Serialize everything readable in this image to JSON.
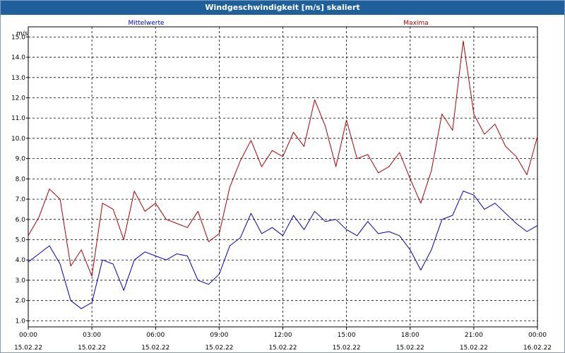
{
  "window_title": "Windgeschwindigkeit [m/s] skaliert",
  "colors": {
    "titlebar": "#1f5f9c",
    "mean": "#0000c0",
    "max": "#b00000",
    "grid": "#000000"
  },
  "chart_data": {
    "type": "line",
    "title": "Windgeschwindigkeit [m/s] skaliert",
    "ylabel": "m/s",
    "xlabel": "",
    "ylim": [
      0.7,
      15.5
    ],
    "yticks": [
      1.0,
      2.0,
      3.0,
      4.0,
      5.0,
      6.0,
      7.0,
      8.0,
      9.0,
      10.0,
      11.0,
      12.0,
      13.0,
      14.0,
      15.0
    ],
    "ytick_labels": [
      "1.0",
      "2.0",
      "3.0",
      "4.0",
      "5.0",
      "6.0",
      "7.0",
      "8.0",
      "9.0",
      "10.0",
      "11.0",
      "12.0",
      "13.0",
      "14.0",
      "15.0"
    ],
    "xlim_hours": [
      0,
      24
    ],
    "xticks_hours": [
      0,
      3,
      6,
      9,
      12,
      15,
      18,
      21,
      24
    ],
    "xtick_time_labels": [
      "00:00",
      "03:00",
      "06:00",
      "09:00",
      "12:00",
      "15:00",
      "18:00",
      "21:00",
      "00:00"
    ],
    "xtick_date_labels": [
      "15.02.22",
      "15.02.22",
      "15.02.22",
      "15.02.22",
      "15.02.22",
      "15.02.22",
      "15.02.22",
      "15.02.22",
      "16.02.22"
    ],
    "grid": true,
    "legend_placement": "top",
    "x_hours": [
      0,
      0.5,
      1,
      1.5,
      2,
      2.5,
      3,
      3.5,
      4,
      4.5,
      5,
      5.5,
      6,
      6.5,
      7,
      7.5,
      8,
      8.5,
      9,
      9.5,
      10,
      10.5,
      11,
      11.5,
      12,
      12.5,
      13,
      13.5,
      14,
      14.5,
      15,
      15.5,
      16,
      16.5,
      17,
      17.5,
      18,
      18.5,
      19,
      19.5,
      20,
      20.5,
      21,
      21.5,
      22,
      22.5,
      23,
      23.5,
      24
    ],
    "series": [
      {
        "name": "Mittelwerte",
        "color": "#0000c0",
        "values": [
          3.9,
          4.3,
          4.7,
          3.8,
          2.0,
          1.6,
          1.9,
          4.0,
          3.8,
          2.5,
          4.0,
          4.4,
          4.2,
          4.0,
          4.3,
          4.2,
          3.0,
          2.8,
          3.3,
          4.7,
          5.1,
          6.3,
          5.3,
          5.6,
          5.2,
          6.2,
          5.5,
          6.4,
          5.9,
          6.0,
          5.5,
          5.2,
          5.9,
          5.3,
          5.4,
          5.2,
          4.5,
          3.5,
          4.5,
          6.0,
          6.2,
          7.4,
          7.2,
          6.5,
          6.8,
          6.3,
          5.8,
          5.4,
          5.7
        ]
      },
      {
        "name": "Maxima",
        "color": "#b00000",
        "values": [
          5.2,
          6.1,
          7.5,
          7.0,
          3.7,
          4.5,
          3.2,
          6.8,
          6.5,
          5.0,
          7.4,
          6.4,
          6.8,
          6.0,
          5.8,
          5.6,
          6.4,
          4.9,
          5.3,
          7.6,
          8.9,
          9.9,
          8.6,
          9.4,
          9.1,
          10.3,
          9.6,
          11.9,
          10.6,
          8.6,
          10.9,
          9.0,
          9.2,
          8.3,
          8.6,
          9.3,
          8.0,
          6.8,
          8.4,
          11.2,
          10.4,
          14.8,
          11.2,
          10.2,
          10.7,
          9.6,
          9.1,
          8.2,
          10.1
        ]
      }
    ]
  }
}
